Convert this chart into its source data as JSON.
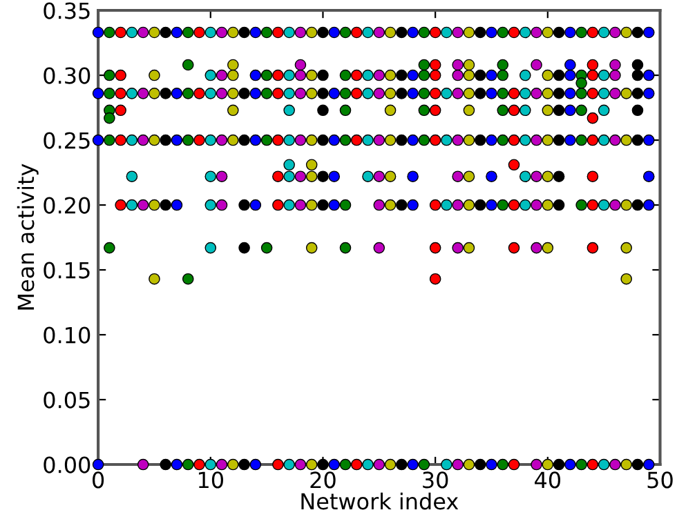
{
  "chart_data": {
    "type": "scatter",
    "xlabel": "Network index",
    "ylabel": "Mean activity",
    "xlim": [
      0,
      50
    ],
    "ylim": [
      0,
      0.35
    ],
    "xticks": [
      0,
      10,
      20,
      30,
      40,
      50
    ],
    "yticks": [
      {
        "value": 0,
        "label": "0.00"
      },
      {
        "value": 0.05,
        "label": "0.05"
      },
      {
        "value": 0.1,
        "label": "0.10"
      },
      {
        "value": 0.15,
        "label": "0.15"
      },
      {
        "value": 0.2,
        "label": "0.20"
      },
      {
        "value": 0.25,
        "label": "0.25"
      },
      {
        "value": 0.3,
        "label": "0.30"
      },
      {
        "value": 0.35,
        "label": "0.35"
      }
    ],
    "grid": false,
    "legend": false,
    "marker": "circle",
    "series": [
      {
        "color": "#0000ff",
        "x": [
          0,
          0,
          0,
          0,
          7,
          7,
          7,
          7,
          7,
          14,
          14,
          14,
          14,
          14,
          14,
          21,
          21,
          21,
          21,
          21,
          21,
          28,
          28,
          28,
          28,
          28,
          28,
          28,
          35,
          35,
          35,
          35,
          35,
          35,
          35,
          42,
          42,
          42,
          42,
          42,
          42,
          42,
          49,
          49,
          49,
          49,
          49,
          49,
          49
        ],
        "values": [
          0.333,
          0.286,
          0.25,
          0,
          0.333,
          0.286,
          0.25,
          0.2,
          0,
          0.333,
          0.3,
          0.286,
          0.25,
          0.2,
          0,
          0.333,
          0.286,
          0.25,
          0.222,
          0.2,
          0,
          0.333,
          0.3,
          0.286,
          0.25,
          0.222,
          0.2,
          0,
          0.333,
          0.3,
          0.286,
          0.25,
          0.222,
          0.2,
          0,
          0.333,
          0.308,
          0.3,
          0.286,
          0.273,
          0.25,
          0,
          0.333,
          0.3,
          0.286,
          0.25,
          0.222,
          0.2,
          0
        ]
      },
      {
        "color": "#008000",
        "x": [
          1,
          1,
          1,
          1,
          1,
          1,
          1,
          8,
          8,
          8,
          8,
          8,
          8,
          15,
          15,
          15,
          15,
          15,
          22,
          22,
          22,
          22,
          22,
          22,
          22,
          22,
          29,
          29,
          29,
          29,
          29,
          29,
          29,
          36,
          36,
          36,
          36,
          36,
          36,
          36,
          36,
          43,
          43,
          43,
          43,
          43,
          43,
          43,
          43
        ],
        "values": [
          0.333,
          0.3,
          0.286,
          0.273,
          0.267,
          0.25,
          0.167,
          0.333,
          0.308,
          0.286,
          0.25,
          0.143,
          0,
          0.333,
          0.3,
          0.286,
          0.25,
          0.167,
          0.333,
          0.3,
          0.286,
          0.273,
          0.25,
          0.2,
          0.167,
          0,
          0.333,
          0.308,
          0.3,
          0.286,
          0.273,
          0.25,
          0,
          0.333,
          0.308,
          0.3,
          0.286,
          0.273,
          0.25,
          0.2,
          0,
          0.333,
          0.3,
          0.294,
          0.286,
          0.273,
          0.25,
          0.2,
          0
        ]
      },
      {
        "color": "#ff0000",
        "x": [
          2,
          2,
          2,
          2,
          2,
          2,
          9,
          9,
          9,
          9,
          16,
          16,
          16,
          16,
          16,
          16,
          16,
          23,
          23,
          23,
          23,
          23,
          30,
          30,
          30,
          30,
          30,
          30,
          30,
          30,
          30,
          37,
          37,
          37,
          37,
          37,
          37,
          37,
          37,
          44,
          44,
          44,
          44,
          44,
          44,
          44,
          44,
          44,
          44
        ],
        "values": [
          0.333,
          0.3,
          0.286,
          0.273,
          0.25,
          0.2,
          0.333,
          0.286,
          0.25,
          0,
          0.333,
          0.3,
          0.286,
          0.25,
          0.222,
          0.2,
          0,
          0.333,
          0.3,
          0.286,
          0.25,
          0,
          0.333,
          0.308,
          0.3,
          0.286,
          0.273,
          0.25,
          0.2,
          0.167,
          0.143,
          0.333,
          0.286,
          0.273,
          0.25,
          0.231,
          0.2,
          0.167,
          0,
          0.333,
          0.308,
          0.3,
          0.286,
          0.267,
          0.25,
          0.222,
          0.2,
          0.167,
          0
        ]
      },
      {
        "color": "#00bfbf",
        "x": [
          3,
          3,
          3,
          3,
          3,
          10,
          10,
          10,
          10,
          10,
          10,
          10,
          10,
          17,
          17,
          17,
          17,
          17,
          17,
          17,
          17,
          17,
          24,
          24,
          24,
          24,
          24,
          24,
          31,
          31,
          31,
          31,
          31,
          38,
          38,
          38,
          38,
          38,
          38,
          38,
          45,
          45,
          45,
          45,
          45,
          45,
          45
        ],
        "values": [
          0.333,
          0.286,
          0.25,
          0.222,
          0.2,
          0.333,
          0.3,
          0.286,
          0.25,
          0.222,
          0.2,
          0.167,
          0,
          0.333,
          0.3,
          0.286,
          0.273,
          0.25,
          0.231,
          0.222,
          0.2,
          0,
          0.333,
          0.3,
          0.286,
          0.25,
          0.222,
          0,
          0.333,
          0.286,
          0.25,
          0.2,
          0,
          0.333,
          0.3,
          0.286,
          0.273,
          0.25,
          0.222,
          0.2,
          0.333,
          0.3,
          0.286,
          0.273,
          0.25,
          0.2,
          0
        ]
      },
      {
        "color": "#bf00bf",
        "x": [
          4,
          4,
          4,
          4,
          4,
          11,
          11,
          11,
          11,
          11,
          11,
          11,
          18,
          18,
          18,
          18,
          18,
          18,
          18,
          18,
          25,
          25,
          25,
          25,
          25,
          25,
          25,
          25,
          32,
          32,
          32,
          32,
          32,
          32,
          32,
          32,
          32,
          39,
          39,
          39,
          39,
          39,
          39,
          39,
          39,
          46,
          46,
          46,
          46,
          46,
          46,
          46
        ],
        "values": [
          0.333,
          0.286,
          0.25,
          0.2,
          0,
          0.333,
          0.3,
          0.286,
          0.25,
          0.222,
          0.2,
          0,
          0.333,
          0.308,
          0.3,
          0.286,
          0.25,
          0.222,
          0.2,
          0,
          0.333,
          0.3,
          0.286,
          0.25,
          0.222,
          0.2,
          0.167,
          0,
          0.333,
          0.308,
          0.3,
          0.286,
          0.25,
          0.222,
          0.2,
          0.167,
          0,
          0.333,
          0.308,
          0.286,
          0.25,
          0.222,
          0.2,
          0.167,
          0,
          0.333,
          0.308,
          0.3,
          0.286,
          0.25,
          0.2,
          0
        ]
      },
      {
        "color": "#bfbf00",
        "x": [
          5,
          5,
          5,
          5,
          5,
          5,
          12,
          12,
          12,
          12,
          12,
          12,
          12,
          19,
          19,
          19,
          19,
          19,
          19,
          19,
          19,
          19,
          26,
          26,
          26,
          26,
          26,
          26,
          26,
          26,
          33,
          33,
          33,
          33,
          33,
          33,
          33,
          33,
          33,
          33,
          40,
          40,
          40,
          40,
          40,
          40,
          40,
          40,
          40,
          47,
          47,
          47,
          47,
          47,
          47,
          47
        ],
        "values": [
          0.333,
          0.3,
          0.286,
          0.25,
          0.2,
          0.143,
          0.333,
          0.308,
          0.3,
          0.286,
          0.273,
          0.25,
          0,
          0.333,
          0.3,
          0.286,
          0.25,
          0.231,
          0.222,
          0.2,
          0.167,
          0,
          0.333,
          0.3,
          0.286,
          0.273,
          0.25,
          0.222,
          0.2,
          0,
          0.333,
          0.308,
          0.3,
          0.286,
          0.273,
          0.25,
          0.222,
          0.2,
          0.167,
          0,
          0.333,
          0.3,
          0.286,
          0.273,
          0.25,
          0.222,
          0.2,
          0.167,
          0,
          0.333,
          0.286,
          0.25,
          0.2,
          0.167,
          0.143,
          0
        ]
      },
      {
        "color": "#000000",
        "x": [
          6,
          6,
          6,
          6,
          6,
          13,
          13,
          13,
          13,
          13,
          13,
          20,
          20,
          20,
          20,
          20,
          20,
          20,
          20,
          27,
          27,
          27,
          27,
          27,
          27,
          34,
          34,
          34,
          34,
          34,
          34,
          41,
          41,
          41,
          41,
          41,
          41,
          41,
          41,
          48,
          48,
          48,
          48,
          48,
          48,
          48,
          48
        ],
        "values": [
          0.333,
          0.286,
          0.25,
          0.2,
          0,
          0.333,
          0.286,
          0.25,
          0.2,
          0.167,
          0,
          0.333,
          0.3,
          0.286,
          0.273,
          0.25,
          0.222,
          0.2,
          0,
          0.333,
          0.3,
          0.286,
          0.25,
          0.2,
          0,
          0.333,
          0.3,
          0.286,
          0.25,
          0.2,
          0,
          0.333,
          0.3,
          0.286,
          0.273,
          0.25,
          0.222,
          0.2,
          0,
          0.333,
          0.308,
          0.3,
          0.286,
          0.273,
          0.25,
          0.2,
          0
        ]
      }
    ]
  }
}
